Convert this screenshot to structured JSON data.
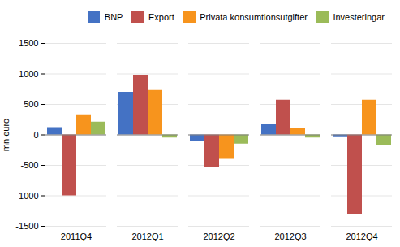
{
  "chart_data": {
    "type": "bar",
    "categories": [
      "2011Q4",
      "2012Q1",
      "2012Q2",
      "2012Q3",
      "2012Q4"
    ],
    "series": [
      {
        "name": "BNP",
        "color": "#4472C4",
        "values": [
          120,
          700,
          -100,
          180,
          -30
        ]
      },
      {
        "name": "Export",
        "color": "#C0504D",
        "values": [
          -1000,
          980,
          -530,
          570,
          -1300
        ]
      },
      {
        "name": "Privata konsumtionsutgifter",
        "color": "#F7941D",
        "values": [
          330,
          730,
          -400,
          110,
          570
        ]
      },
      {
        "name": "Investeringar",
        "color": "#9BBB59",
        "values": [
          210,
          -50,
          -150,
          -50,
          -170
        ]
      }
    ],
    "ylabel": "mn euro",
    "ylim": [
      -1500,
      1500
    ],
    "yticks": [
      -1500,
      -1000,
      -500,
      0,
      500,
      1000,
      1500
    ],
    "grid": true,
    "legend": "upper right"
  }
}
